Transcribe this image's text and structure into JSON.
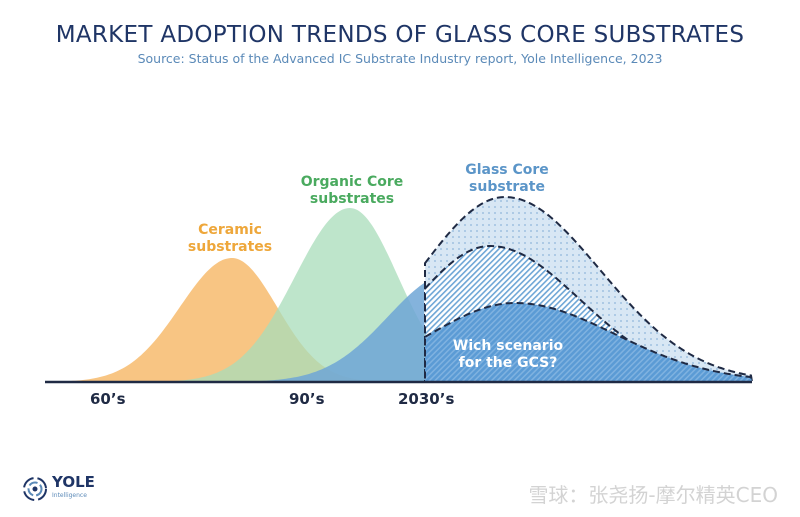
{
  "title": "MARKET ADOPTION TRENDS OF GLASS CORE SUBSTRATES",
  "subtitle": "Source: Status of the Advanced IC Substrate Industry report, Yole Intelligence, 2023",
  "labels": {
    "ceramic": [
      "Ceramic",
      "substrates"
    ],
    "organic": [
      "Organic Core",
      "substrates"
    ],
    "glass": [
      "Glass Core",
      "substrate"
    ],
    "scenario": [
      "Wich scenario",
      "for the GCS?"
    ]
  },
  "ticks": [
    "60’s",
    "90’s",
    "2030’s"
  ],
  "colors": {
    "ceramic": "#f7bf76",
    "organic": "#a8dcb9",
    "glass": "#6ea6d6",
    "ceramic_text": "#eea73b",
    "organic_text": "#4aaa5f",
    "glass_text": "#5b95c8",
    "dark": "#1f2a44"
  },
  "logo": {
    "name": "YOLE",
    "sub": "Intelligence"
  },
  "watermark": "雪球：张尧扬-摩尔精英CEO"
}
